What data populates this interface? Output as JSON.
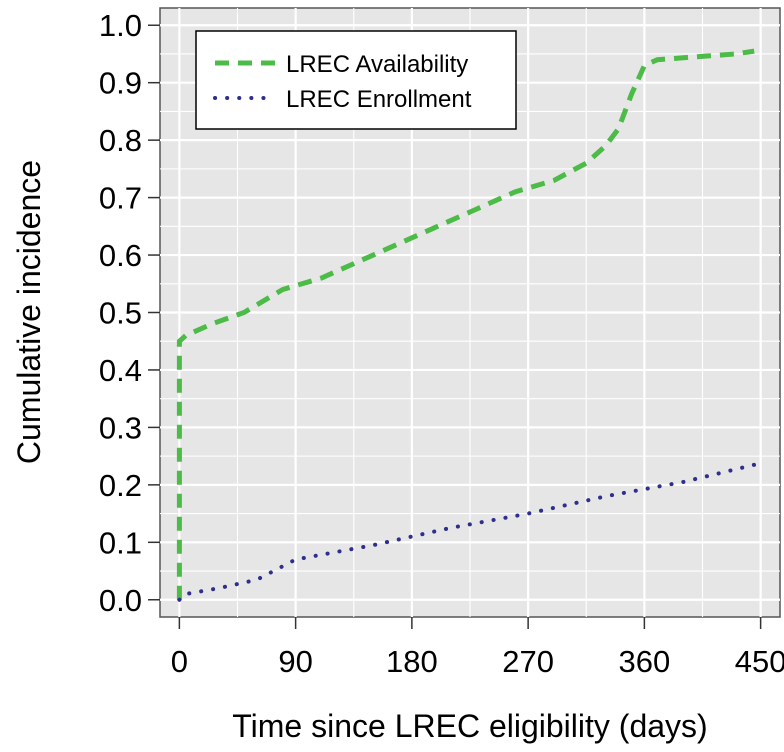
{
  "chart_data": {
    "type": "line",
    "title": "",
    "xlabel": "Time since LREC eligibility (days)",
    "ylabel": "Cumulative incidence",
    "xlim": [
      -15,
      465
    ],
    "ylim": [
      -0.03,
      1.03
    ],
    "x_ticks": [
      0,
      90,
      180,
      270,
      360,
      450
    ],
    "x_tick_labels": [
      "0",
      "90",
      "180",
      "270",
      "360",
      "450"
    ],
    "y_ticks": [
      0,
      0.1,
      0.2,
      0.3,
      0.4,
      0.5,
      0.6,
      0.7,
      0.8,
      0.9,
      1.0
    ],
    "y_tick_labels": [
      "0.0",
      "0.1",
      "0.2",
      "0.3",
      "0.4",
      "0.5",
      "0.6",
      "0.7",
      "0.8",
      "0.9",
      "1.0"
    ],
    "grid": true,
    "legend_position": "top-left",
    "series": [
      {
        "name": "LREC Availability",
        "style": "dashed",
        "color": "#4cbb47",
        "x": [
          0,
          0,
          5,
          25,
          50,
          80,
          110,
          140,
          170,
          200,
          230,
          260,
          290,
          315,
          330,
          340,
          350,
          360,
          370,
          400,
          430,
          445
        ],
        "y": [
          0.0,
          0.45,
          0.46,
          0.48,
          0.5,
          0.54,
          0.56,
          0.59,
          0.62,
          0.65,
          0.68,
          0.71,
          0.73,
          0.76,
          0.79,
          0.82,
          0.88,
          0.93,
          0.94,
          0.945,
          0.95,
          0.955
        ]
      },
      {
        "name": "LREC Enrollment",
        "style": "dotted",
        "color": "#2e2e8e",
        "x": [
          0,
          5,
          30,
          60,
          90,
          150,
          210,
          270,
          330,
          390,
          445
        ],
        "y": [
          0.0,
          0.01,
          0.02,
          0.035,
          0.07,
          0.095,
          0.125,
          0.15,
          0.18,
          0.205,
          0.235
        ]
      }
    ]
  }
}
